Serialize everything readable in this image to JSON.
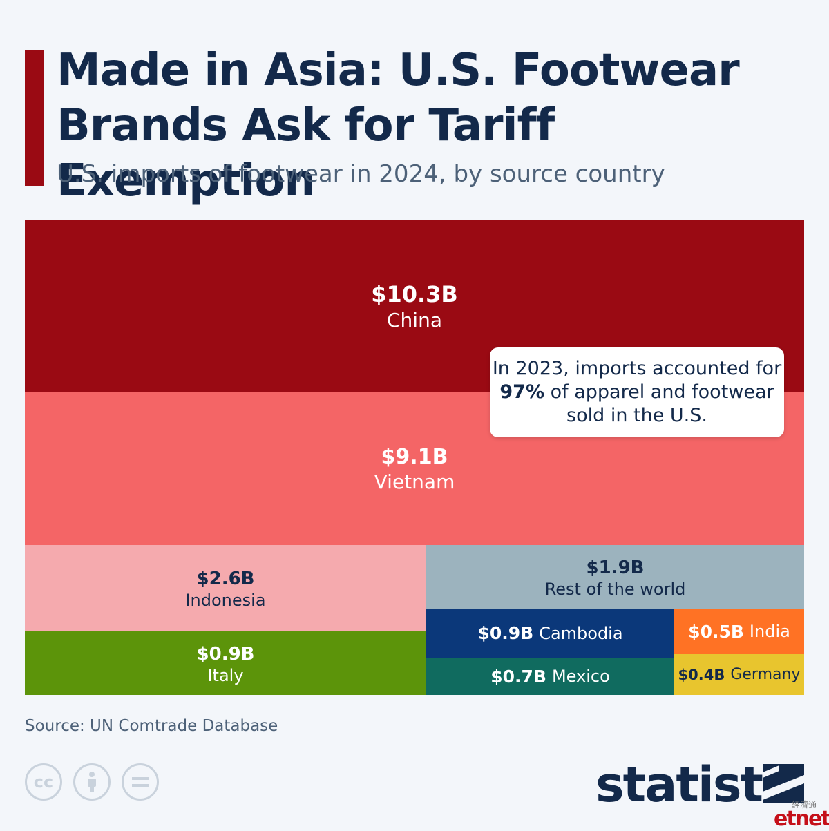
{
  "header": {
    "title_line1": "Made in Asia: U.S. Footwear",
    "title_line2": "Brands Ask for Tariff Exemption",
    "subtitle": "U.S. imports of footwear in 2024, by source country"
  },
  "chart_data": {
    "type": "treemap",
    "title": "Made in Asia: U.S. Footwear Brands Ask for Tariff Exemption",
    "subtitle": "U.S. imports of footwear in 2024, by source country",
    "unit": "USD billions",
    "items": [
      {
        "name": "China",
        "value": 10.3,
        "label": "$10.3B",
        "color": "#9a0a13",
        "text_color": "#ffffff"
      },
      {
        "name": "Vietnam",
        "value": 9.1,
        "label": "$9.1B",
        "color": "#f46566",
        "text_color": "#ffffff"
      },
      {
        "name": "Indonesia",
        "value": 2.6,
        "label": "$2.6B",
        "color": "#f5aaae",
        "text_color": "#13294a"
      },
      {
        "name": "Italy",
        "value": 0.9,
        "label": "$0.9B",
        "color": "#5c940a",
        "text_color": "#ffffff"
      },
      {
        "name": "Rest of the world",
        "value": 1.9,
        "label": "$1.9B",
        "color": "#9cb3be",
        "text_color": "#13294a"
      },
      {
        "name": "Cambodia",
        "value": 0.9,
        "label": "$0.9B",
        "color": "#0b387a",
        "text_color": "#ffffff"
      },
      {
        "name": "India",
        "value": 0.5,
        "label": "$0.5B",
        "color": "#ff7224",
        "text_color": "#ffffff"
      },
      {
        "name": "Mexico",
        "value": 0.7,
        "label": "$0.7B",
        "color": "#106b5f",
        "text_color": "#ffffff"
      },
      {
        "name": "Germany",
        "value": 0.4,
        "label": "$0.4B",
        "color": "#e8c52e",
        "text_color": "#13294a"
      }
    ]
  },
  "callout": {
    "before": "In 2023, imports accounted for ",
    "highlight": "97%",
    "after": " of apparel and footwear sold in the U.S."
  },
  "footer": {
    "source": "Source: UN Comtrade Database",
    "license_icons": [
      "cc-icon",
      "attribution-icon",
      "no-derivatives-icon"
    ],
    "brand": "statista",
    "watermark_cn": "經濟通",
    "watermark_en": "etnet"
  }
}
